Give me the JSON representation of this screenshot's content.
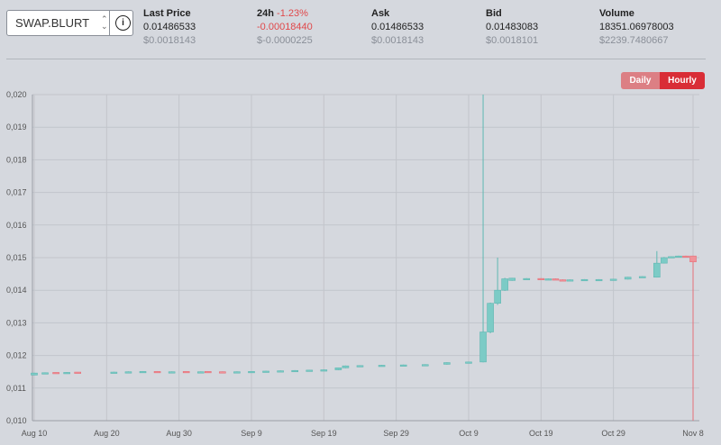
{
  "pair": {
    "symbol": "SWAP.BLURT"
  },
  "stats": [
    {
      "label": "Last Price",
      "value": "0.01486533",
      "usd": "$0.0018143"
    },
    {
      "label": "24h",
      "pct": "-1.23%",
      "value": "-0.00018440",
      "usd": "$-0.0000225"
    },
    {
      "label": "Ask",
      "value": "0.01486533",
      "usd": "$0.0018143"
    },
    {
      "label": "Bid",
      "value": "0.01483083",
      "usd": "$0.0018101"
    },
    {
      "label": "Volume",
      "value": "18351.06978003",
      "usd": "$2239.7480667"
    }
  ],
  "buttons": {
    "daily": "Daily",
    "hourly": "Hourly"
  },
  "colors": {
    "up": "#7ccbc6",
    "down": "#f0939a",
    "active": "#d92d36",
    "inactive": "#dc7f84"
  },
  "chart_data": {
    "type": "candlestick",
    "ylim": [
      0.01,
      0.02
    ],
    "yticks": [
      "0,010",
      "0,011",
      "0,012",
      "0,013",
      "0,014",
      "0,015",
      "0,016",
      "0,017",
      "0,018",
      "0,019",
      "0,020"
    ],
    "xticks": [
      "Aug 10",
      "Aug 20",
      "Aug 30",
      "Sep 9",
      "Sep 19",
      "Sep 29",
      "Oct 9",
      "Oct 19",
      "Oct 29",
      "Nov 8"
    ],
    "xdays": [
      0,
      91
    ],
    "candles": [
      {
        "d": 0,
        "o": 0.0114,
        "c": 0.01146,
        "h": 0.01147,
        "l": 0.01139
      },
      {
        "d": 1.5,
        "o": 0.01146,
        "c": 0.01147,
        "h": 0.01148,
        "l": 0.01145
      },
      {
        "d": 3,
        "o": 0.01148,
        "c": 0.01147,
        "h": 0.01148,
        "l": 0.01146
      },
      {
        "d": 4.5,
        "o": 0.01147,
        "c": 0.01148,
        "h": 0.01149,
        "l": 0.01146
      },
      {
        "d": 6,
        "o": 0.01149,
        "c": 0.01148,
        "h": 0.01149,
        "l": 0.01147
      },
      {
        "d": 11,
        "o": 0.01148,
        "c": 0.01149,
        "h": 0.0115,
        "l": 0.01147
      },
      {
        "d": 13,
        "o": 0.01149,
        "c": 0.0115,
        "h": 0.01151,
        "l": 0.01148
      },
      {
        "d": 15,
        "o": 0.0115,
        "c": 0.01151,
        "h": 0.01152,
        "l": 0.01149
      },
      {
        "d": 17,
        "o": 0.01151,
        "c": 0.0115,
        "h": 0.01152,
        "l": 0.01149
      },
      {
        "d": 19,
        "o": 0.0115,
        "c": 0.0115,
        "h": 0.01151,
        "l": 0.01149
      },
      {
        "d": 21,
        "o": 0.01151,
        "c": 0.0115,
        "h": 0.01152,
        "l": 0.01149
      },
      {
        "d": 23,
        "o": 0.0115,
        "c": 0.0115,
        "h": 0.01151,
        "l": 0.01149
      },
      {
        "d": 24,
        "o": 0.01151,
        "c": 0.0115,
        "h": 0.01152,
        "l": 0.01149
      },
      {
        "d": 26,
        "o": 0.0115,
        "c": 0.01149,
        "h": 0.01151,
        "l": 0.01148
      },
      {
        "d": 28,
        "o": 0.0115,
        "c": 0.0115,
        "h": 0.01151,
        "l": 0.01149
      },
      {
        "d": 30,
        "o": 0.0115,
        "c": 0.01151,
        "h": 0.01152,
        "l": 0.01149
      },
      {
        "d": 32,
        "o": 0.01151,
        "c": 0.01152,
        "h": 0.01153,
        "l": 0.0115
      },
      {
        "d": 34,
        "o": 0.01152,
        "c": 0.01153,
        "h": 0.01154,
        "l": 0.01151
      },
      {
        "d": 36,
        "o": 0.01153,
        "c": 0.01154,
        "h": 0.01155,
        "l": 0.01152
      },
      {
        "d": 38,
        "o": 0.01154,
        "c": 0.01155,
        "h": 0.01156,
        "l": 0.01153
      },
      {
        "d": 40,
        "o": 0.01155,
        "c": 0.01156,
        "h": 0.01157,
        "l": 0.01154
      },
      {
        "d": 42,
        "o": 0.01156,
        "c": 0.01162,
        "h": 0.01163,
        "l": 0.01155
      },
      {
        "d": 43,
        "o": 0.01162,
        "c": 0.01168,
        "h": 0.01169,
        "l": 0.01161
      },
      {
        "d": 45,
        "o": 0.01168,
        "c": 0.01169,
        "h": 0.0117,
        "l": 0.01167
      },
      {
        "d": 48,
        "o": 0.01169,
        "c": 0.0117,
        "h": 0.01171,
        "l": 0.01168
      },
      {
        "d": 51,
        "o": 0.0117,
        "c": 0.01171,
        "h": 0.01172,
        "l": 0.01169
      },
      {
        "d": 54,
        "o": 0.01171,
        "c": 0.01172,
        "h": 0.01173,
        "l": 0.0117
      },
      {
        "d": 57,
        "o": 0.01173,
        "c": 0.01178,
        "h": 0.01179,
        "l": 0.01172
      },
      {
        "d": 60,
        "o": 0.01178,
        "c": 0.0118,
        "h": 0.01181,
        "l": 0.01177
      },
      {
        "d": 62,
        "o": 0.0118,
        "c": 0.01272,
        "h": 0.02,
        "l": 0.01179
      },
      {
        "d": 63,
        "o": 0.01272,
        "c": 0.0136,
        "h": 0.01362,
        "l": 0.01268
      },
      {
        "d": 64,
        "o": 0.0136,
        "c": 0.014,
        "h": 0.015,
        "l": 0.01355
      },
      {
        "d": 65,
        "o": 0.014,
        "c": 0.01435,
        "h": 0.01438,
        "l": 0.01398
      },
      {
        "d": 66,
        "o": 0.0143,
        "c": 0.01437,
        "h": 0.01438,
        "l": 0.01429
      },
      {
        "d": 68,
        "o": 0.01436,
        "c": 0.01436,
        "h": 0.01437,
        "l": 0.01435
      },
      {
        "d": 70,
        "o": 0.01436,
        "c": 0.01435,
        "h": 0.01437,
        "l": 0.01434
      },
      {
        "d": 71,
        "o": 0.01435,
        "c": 0.01435,
        "h": 0.01436,
        "l": 0.01434
      },
      {
        "d": 72,
        "o": 0.01435,
        "c": 0.01432,
        "h": 0.01436,
        "l": 0.01431
      },
      {
        "d": 73,
        "o": 0.01432,
        "c": 0.01431,
        "h": 0.01433,
        "l": 0.0143
      },
      {
        "d": 74,
        "o": 0.01431,
        "c": 0.01432,
        "h": 0.01433,
        "l": 0.0143
      },
      {
        "d": 76,
        "o": 0.01432,
        "c": 0.01433,
        "h": 0.01434,
        "l": 0.01431
      },
      {
        "d": 78,
        "o": 0.01433,
        "c": 0.01433,
        "h": 0.01434,
        "l": 0.01432
      },
      {
        "d": 80,
        "o": 0.01433,
        "c": 0.01434,
        "h": 0.01435,
        "l": 0.01432
      },
      {
        "d": 82,
        "o": 0.01434,
        "c": 0.0144,
        "h": 0.01441,
        "l": 0.01433
      },
      {
        "d": 84,
        "o": 0.0144,
        "c": 0.01442,
        "h": 0.01443,
        "l": 0.01439
      },
      {
        "d": 86,
        "o": 0.0144,
        "c": 0.01483,
        "h": 0.0152,
        "l": 0.01439
      },
      {
        "d": 87,
        "o": 0.01483,
        "c": 0.015,
        "h": 0.01502,
        "l": 0.01482
      },
      {
        "d": 88,
        "o": 0.015,
        "c": 0.01503,
        "h": 0.01504,
        "l": 0.01499
      },
      {
        "d": 89,
        "o": 0.01503,
        "c": 0.01505,
        "h": 0.01506,
        "l": 0.01502
      },
      {
        "d": 90,
        "o": 0.01505,
        "c": 0.01503,
        "h": 0.01506,
        "l": 0.01502
      },
      {
        "d": 91,
        "o": 0.01505,
        "c": 0.01487,
        "h": 0.01506,
        "l": 0.01
      }
    ]
  }
}
